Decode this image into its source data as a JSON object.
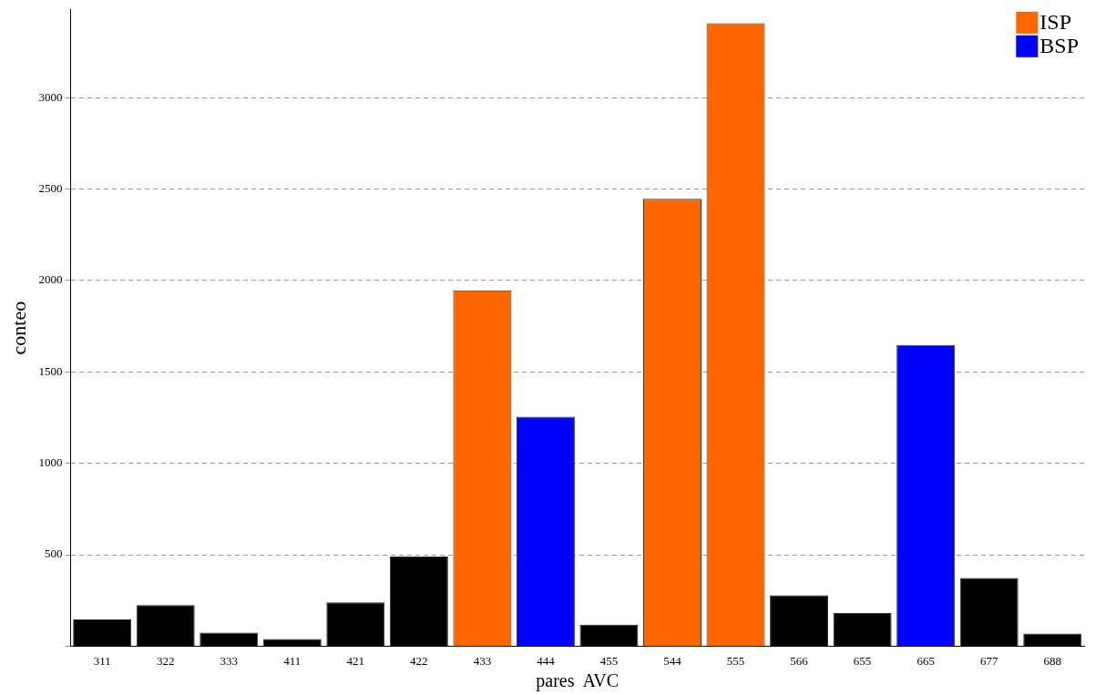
{
  "chart_data": {
    "type": "bar",
    "stacked": true,
    "xlabel": "pares  AVC",
    "ylabel": "conteo",
    "categories": [
      "311",
      "322",
      "333",
      "411",
      "421",
      "422",
      "433",
      "444",
      "455",
      "544",
      "555",
      "566",
      "655",
      "665",
      "677",
      "688"
    ],
    "series": [
      {
        "color": "#000000",
        "values": [
          147,
          225,
          74,
          39,
          240,
          490,
          null,
          null,
          118,
          null,
          null,
          279,
          181,
          null,
          373,
          69
        ]
      },
      {
        "name": "ISP",
        "color": "#ff6600",
        "values": [
          null,
          null,
          null,
          null,
          null,
          null,
          1946,
          null,
          null,
          2446,
          3407,
          null,
          null,
          null,
          null,
          null
        ]
      },
      {
        "name": "BSP",
        "color": "#0000ff",
        "values": [
          null,
          null,
          null,
          null,
          null,
          null,
          null,
          1255,
          null,
          null,
          null,
          null,
          null,
          1647,
          null,
          null
        ]
      }
    ],
    "ylim": [
      0,
      3480
    ],
    "yticks": [
      {
        "value": 0,
        "label": null
      },
      500,
      1000,
      1500,
      2000,
      2500,
      3000
    ],
    "grid": "y",
    "legend": "top right"
  }
}
